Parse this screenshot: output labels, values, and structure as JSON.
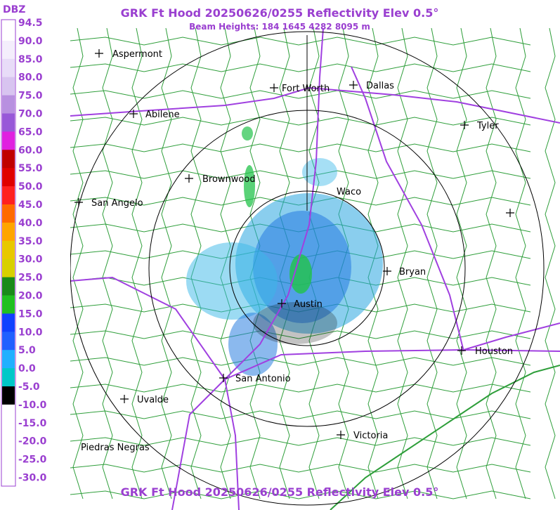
{
  "header": {
    "title": "GRK Ft Hood 20250626/0255 Reflectivity Elev 0.5°",
    "subtitle": "Beam Heights: 184 1645 4282 8095 m"
  },
  "footer": {
    "title": "GRK Ft Hood 20250626/0255 Reflectivity Elev 0.5°"
  },
  "legend": {
    "unit": "DBZ",
    "labels": [
      "94.5",
      "90.0",
      "85.0",
      "80.0",
      "75.0",
      "70.0",
      "65.0",
      "60.0",
      "55.0",
      "50.0",
      "45.0",
      "40.0",
      "35.0",
      "30.0",
      "25.0",
      "20.0",
      "15.0",
      "10.0",
      "5.0",
      "0.0",
      "-5.0",
      "-10.0",
      "-15.0",
      "-20.0",
      "-25.0",
      "-30.0"
    ]
  },
  "cities": [
    "Aspermont",
    "Fort Worth",
    "Dallas",
    "Abilene",
    "Tyler",
    "Brownwood",
    "Waco",
    "San Angelo",
    "Bryan",
    "Austin",
    "Houston",
    "San Antonio",
    "Uvalde",
    "Victoria",
    "Piedras Negras"
  ]
}
